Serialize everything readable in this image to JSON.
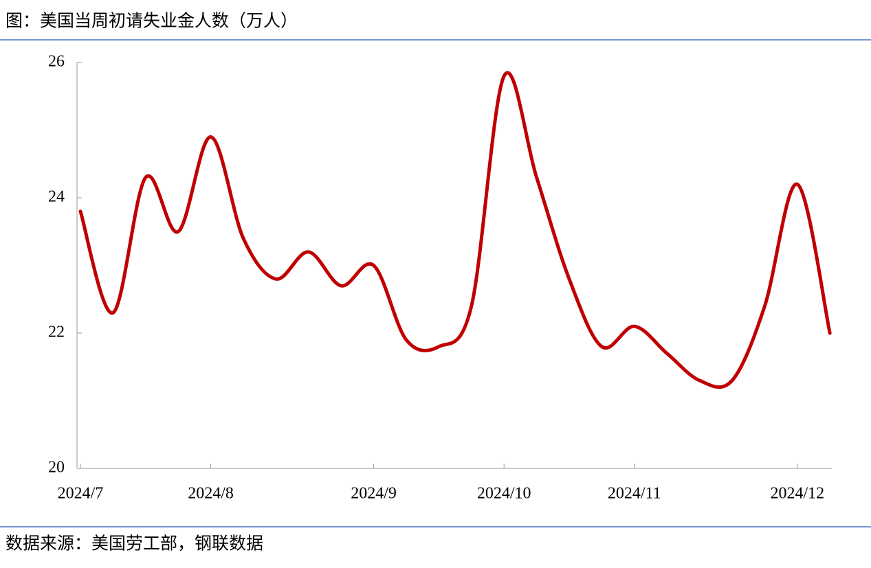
{
  "chart_data": {
    "type": "line",
    "title": "图：美国当周初请失业金人数（万人）",
    "source": "数据来源：美国劳工部，钢联数据",
    "categories": [
      "2024/7",
      null,
      null,
      null,
      "2024/8",
      null,
      null,
      null,
      null,
      "2024/9",
      null,
      null,
      null,
      "2024/10",
      null,
      null,
      null,
      "2024/11",
      null,
      null,
      null,
      null,
      "2024/12",
      null
    ],
    "series": [
      {
        "name": "初请失业金人数",
        "color": "#c00000",
        "values": [
          23.8,
          22.3,
          24.3,
          23.5,
          24.9,
          23.4,
          22.8,
          23.2,
          22.7,
          23.0,
          21.9,
          21.8,
          22.4,
          25.8,
          24.3,
          22.8,
          21.8,
          22.1,
          21.7,
          21.3,
          21.3,
          22.4,
          24.2,
          22.0
        ]
      }
    ],
    "ylim": [
      20,
      26
    ],
    "yticks": [
      20,
      22,
      24,
      26
    ],
    "grid": false
  }
}
